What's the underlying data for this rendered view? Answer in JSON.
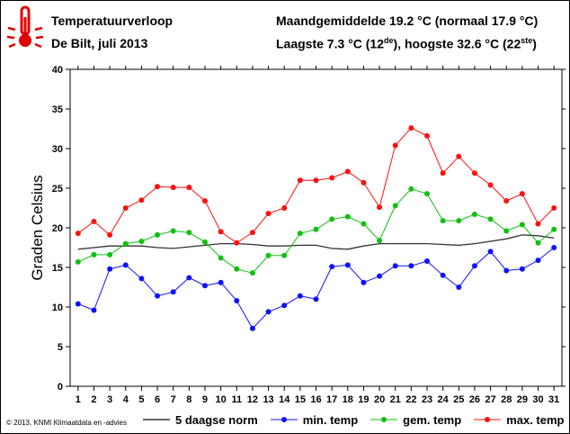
{
  "header": {
    "title": "Temperatuurverloop",
    "subtitle": "De Bilt, juli 2013",
    "mean_line": "Maandgemiddelde 19.2 °C (normaal 17.9 °C)",
    "extremes_pre": "Laagste 7.3 °C (12",
    "extremes_sup1": "de",
    "extremes_mid": "), hoogste 32.6 °C (22",
    "extremes_sup2": "ste",
    "extremes_post": ")"
  },
  "credit": "© 2013, KNMI Klimaatdata en -advies",
  "icon": "thermometer-icon",
  "colors": {
    "norm": "#333333",
    "min": "#1010ff",
    "gem": "#10c010",
    "max": "#ff1010"
  },
  "chart_data": {
    "type": "line",
    "x": [
      1,
      2,
      3,
      4,
      5,
      6,
      7,
      8,
      9,
      10,
      11,
      12,
      13,
      14,
      15,
      16,
      17,
      18,
      19,
      20,
      21,
      22,
      23,
      24,
      25,
      26,
      27,
      28,
      29,
      30,
      31
    ],
    "ylabel": "Graden Celsius",
    "ylim": [
      0,
      40
    ],
    "yticks": [
      0,
      5,
      10,
      15,
      20,
      25,
      30,
      35,
      40
    ],
    "grid": false,
    "legend_position": "bottom",
    "series": [
      {
        "name": "5 daagse norm",
        "marker": false,
        "values": [
          17.3,
          17.5,
          17.7,
          17.7,
          17.7,
          17.5,
          17.4,
          17.6,
          17.8,
          18.0,
          18.0,
          17.9,
          17.7,
          17.7,
          17.8,
          17.8,
          17.4,
          17.3,
          17.7,
          18.0,
          18.0,
          18.0,
          18.0,
          17.9,
          17.8,
          18.0,
          18.3,
          18.6,
          19.1,
          19.0,
          18.7
        ]
      },
      {
        "name": "min. temp",
        "marker": true,
        "values": [
          10.4,
          9.6,
          14.8,
          15.3,
          13.6,
          11.4,
          11.9,
          13.7,
          12.7,
          13.1,
          10.8,
          7.3,
          9.4,
          10.2,
          11.4,
          11.0,
          15.1,
          15.3,
          13.1,
          13.9,
          15.2,
          15.2,
          15.8,
          14.0,
          12.5,
          15.2,
          17.0,
          14.6,
          14.8,
          15.9,
          17.5
        ]
      },
      {
        "name": "gem. temp",
        "marker": true,
        "values": [
          15.7,
          16.6,
          16.6,
          18.0,
          18.3,
          19.1,
          19.6,
          19.4,
          18.2,
          16.2,
          14.8,
          14.3,
          16.5,
          16.5,
          19.3,
          19.8,
          21.1,
          21.4,
          20.5,
          18.4,
          22.8,
          24.9,
          24.3,
          20.9,
          20.9,
          21.7,
          21.1,
          19.6,
          20.4,
          18.1,
          19.8
        ]
      },
      {
        "name": "max. temp",
        "marker": true,
        "values": [
          19.3,
          20.8,
          19.1,
          22.5,
          23.5,
          25.2,
          25.1,
          25.1,
          23.4,
          19.5,
          18.1,
          19.4,
          21.8,
          22.5,
          26.0,
          26.0,
          26.3,
          27.1,
          25.7,
          22.6,
          30.4,
          32.6,
          31.6,
          26.9,
          29.0,
          26.9,
          25.4,
          23.4,
          24.3,
          20.5,
          22.5
        ]
      }
    ]
  }
}
